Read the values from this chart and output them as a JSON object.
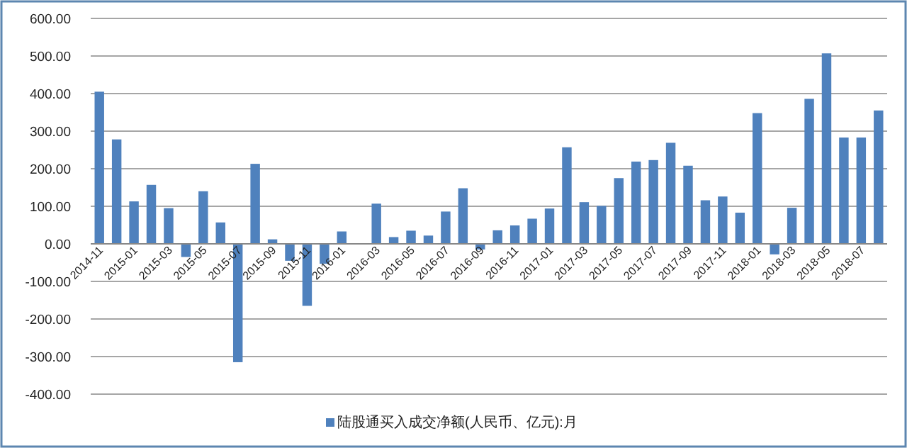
{
  "chart_data": {
    "type": "bar",
    "categories": [
      "2014-11",
      null,
      "2015-01",
      null,
      "2015-03",
      null,
      "2015-05",
      null,
      "2015-07",
      null,
      "2015-09",
      null,
      "2015-11",
      null,
      "2016-01",
      null,
      "2016-03",
      null,
      "2016-05",
      null,
      "2016-07",
      null,
      "2016-09",
      null,
      "2016-11",
      null,
      "2017-01",
      null,
      "2017-03",
      null,
      "2017-05",
      null,
      "2017-07",
      null,
      "2017-09",
      null,
      "2017-11",
      null,
      "2018-01",
      null,
      "2018-03",
      null,
      "2018-05",
      null,
      "2018-07",
      null
    ],
    "series": [
      {
        "name": "陆股通买入成交净额(人民币、亿元):月",
        "color": "#4f81bd",
        "values": [
          405,
          278,
          113,
          157,
          95,
          -35,
          140,
          57,
          -315,
          213,
          12,
          -45,
          -165,
          -53,
          33,
          null,
          107,
          18,
          35,
          22,
          86,
          148,
          -15,
          36,
          49,
          67,
          94,
          257,
          111,
          101,
          175,
          219,
          223,
          269,
          208,
          116,
          126,
          83,
          348,
          -28,
          96,
          386,
          507,
          283,
          283,
          355
        ]
      }
    ],
    "ylim": [
      -400,
      600
    ],
    "yticks": [
      {
        "value": -400,
        "label": "-400.00"
      },
      {
        "value": -300,
        "label": "-300.00"
      },
      {
        "value": -200,
        "label": "-200.00"
      },
      {
        "value": -100,
        "label": "-100.00"
      },
      {
        "value": 0,
        "label": "0.00"
      },
      {
        "value": 100,
        "label": "100.00"
      },
      {
        "value": 200,
        "label": "200.00"
      },
      {
        "value": 300,
        "label": "300.00"
      },
      {
        "value": 400,
        "label": "400.00"
      },
      {
        "value": 500,
        "label": "500.00"
      },
      {
        "value": 600,
        "label": "600.00"
      }
    ],
    "grid": "y",
    "legend": "bottom"
  }
}
